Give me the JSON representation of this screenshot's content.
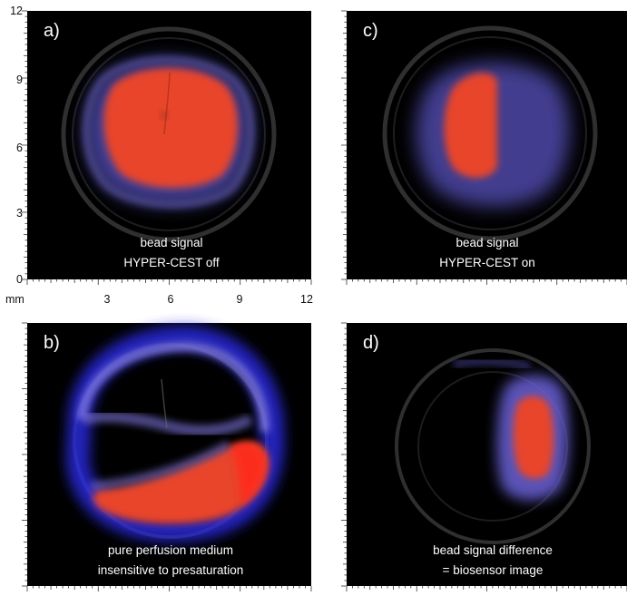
{
  "figure": {
    "panels": [
      {
        "id": "a",
        "letter": "a)",
        "caption_lines": [
          "bead signal",
          "HYPER-CEST off"
        ]
      },
      {
        "id": "b",
        "letter": "b)",
        "caption_lines": [
          "pure perfusion medium",
          "insensitive to presaturation"
        ]
      },
      {
        "id": "c",
        "letter": "c)",
        "caption_lines": [
          "bead signal",
          "HYPER-CEST on"
        ]
      },
      {
        "id": "d",
        "letter": "d)",
        "caption_lines": [
          "bead signal difference",
          "= biosensor image"
        ]
      }
    ],
    "axis_unit": "mm",
    "y_tick_labels": [
      "12",
      "9",
      "6",
      "3",
      "0"
    ],
    "x_tick_labels": [
      "3",
      "6",
      "9",
      "12"
    ],
    "colors": {
      "background": "#000000",
      "high_signal": "#e8442a",
      "low_signal": "#6a62d8",
      "phantom_ring": "#3a3a3a"
    }
  }
}
